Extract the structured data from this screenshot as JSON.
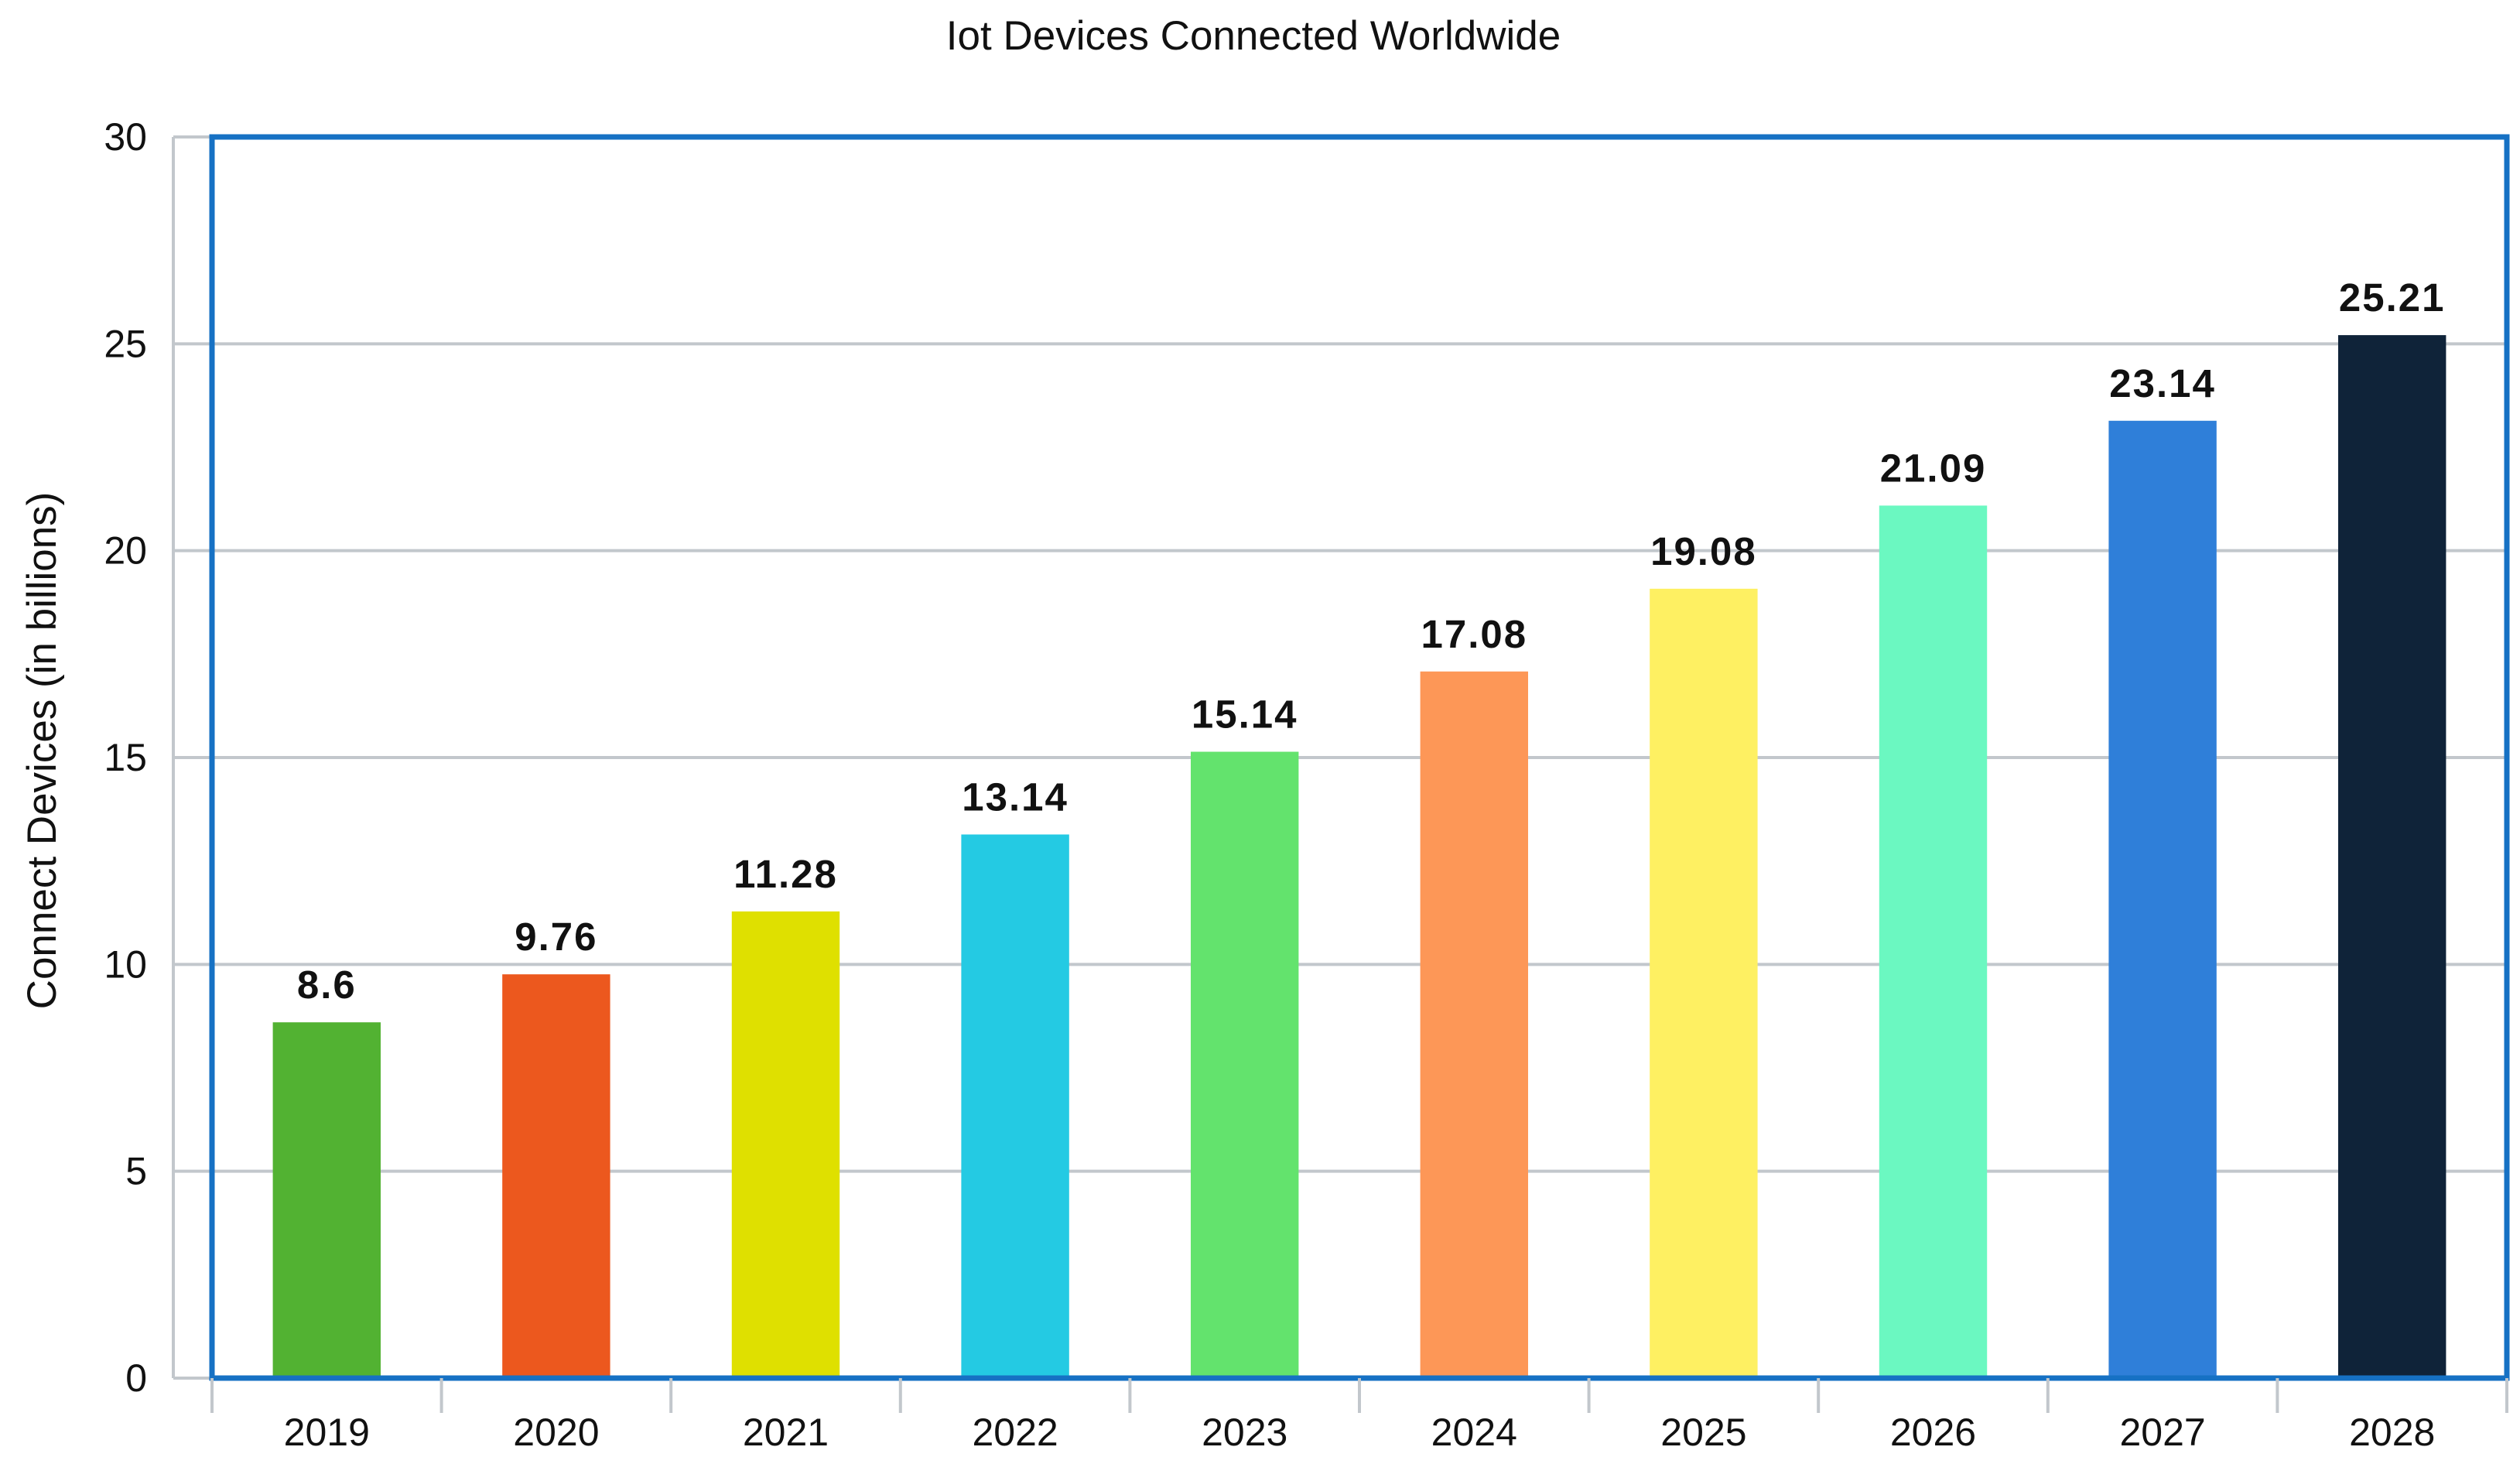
{
  "chart_data": {
    "type": "bar",
    "title": "Iot Devices Connected Worldwide",
    "xlabel": "",
    "ylabel": "Connect Devices (in billions)",
    "ylim": [
      0,
      30
    ],
    "yticks": [
      0,
      5,
      10,
      15,
      20,
      25,
      30
    ],
    "grid": true,
    "categories": [
      "2019",
      "2020",
      "2021",
      "2022",
      "2023",
      "2024",
      "2025",
      "2026",
      "2027",
      "2028"
    ],
    "values": [
      8.6,
      9.76,
      11.28,
      13.14,
      15.14,
      17.08,
      19.08,
      21.09,
      23.14,
      25.21
    ],
    "value_labels": [
      "8.6",
      "9.76",
      "11.28",
      "13.14",
      "15.14",
      "17.08",
      "19.08",
      "21.09",
      "23.14",
      "25.21"
    ],
    "colors": [
      "#52b232",
      "#ec581e",
      "#dfe000",
      "#24cae3",
      "#63e36d",
      "#fd9757",
      "#fef062",
      "#6bf8c1",
      "#2f7fd9",
      "#0f2339"
    ],
    "frame_color": "#1671c4",
    "grid_color": "#c2c7cc"
  }
}
